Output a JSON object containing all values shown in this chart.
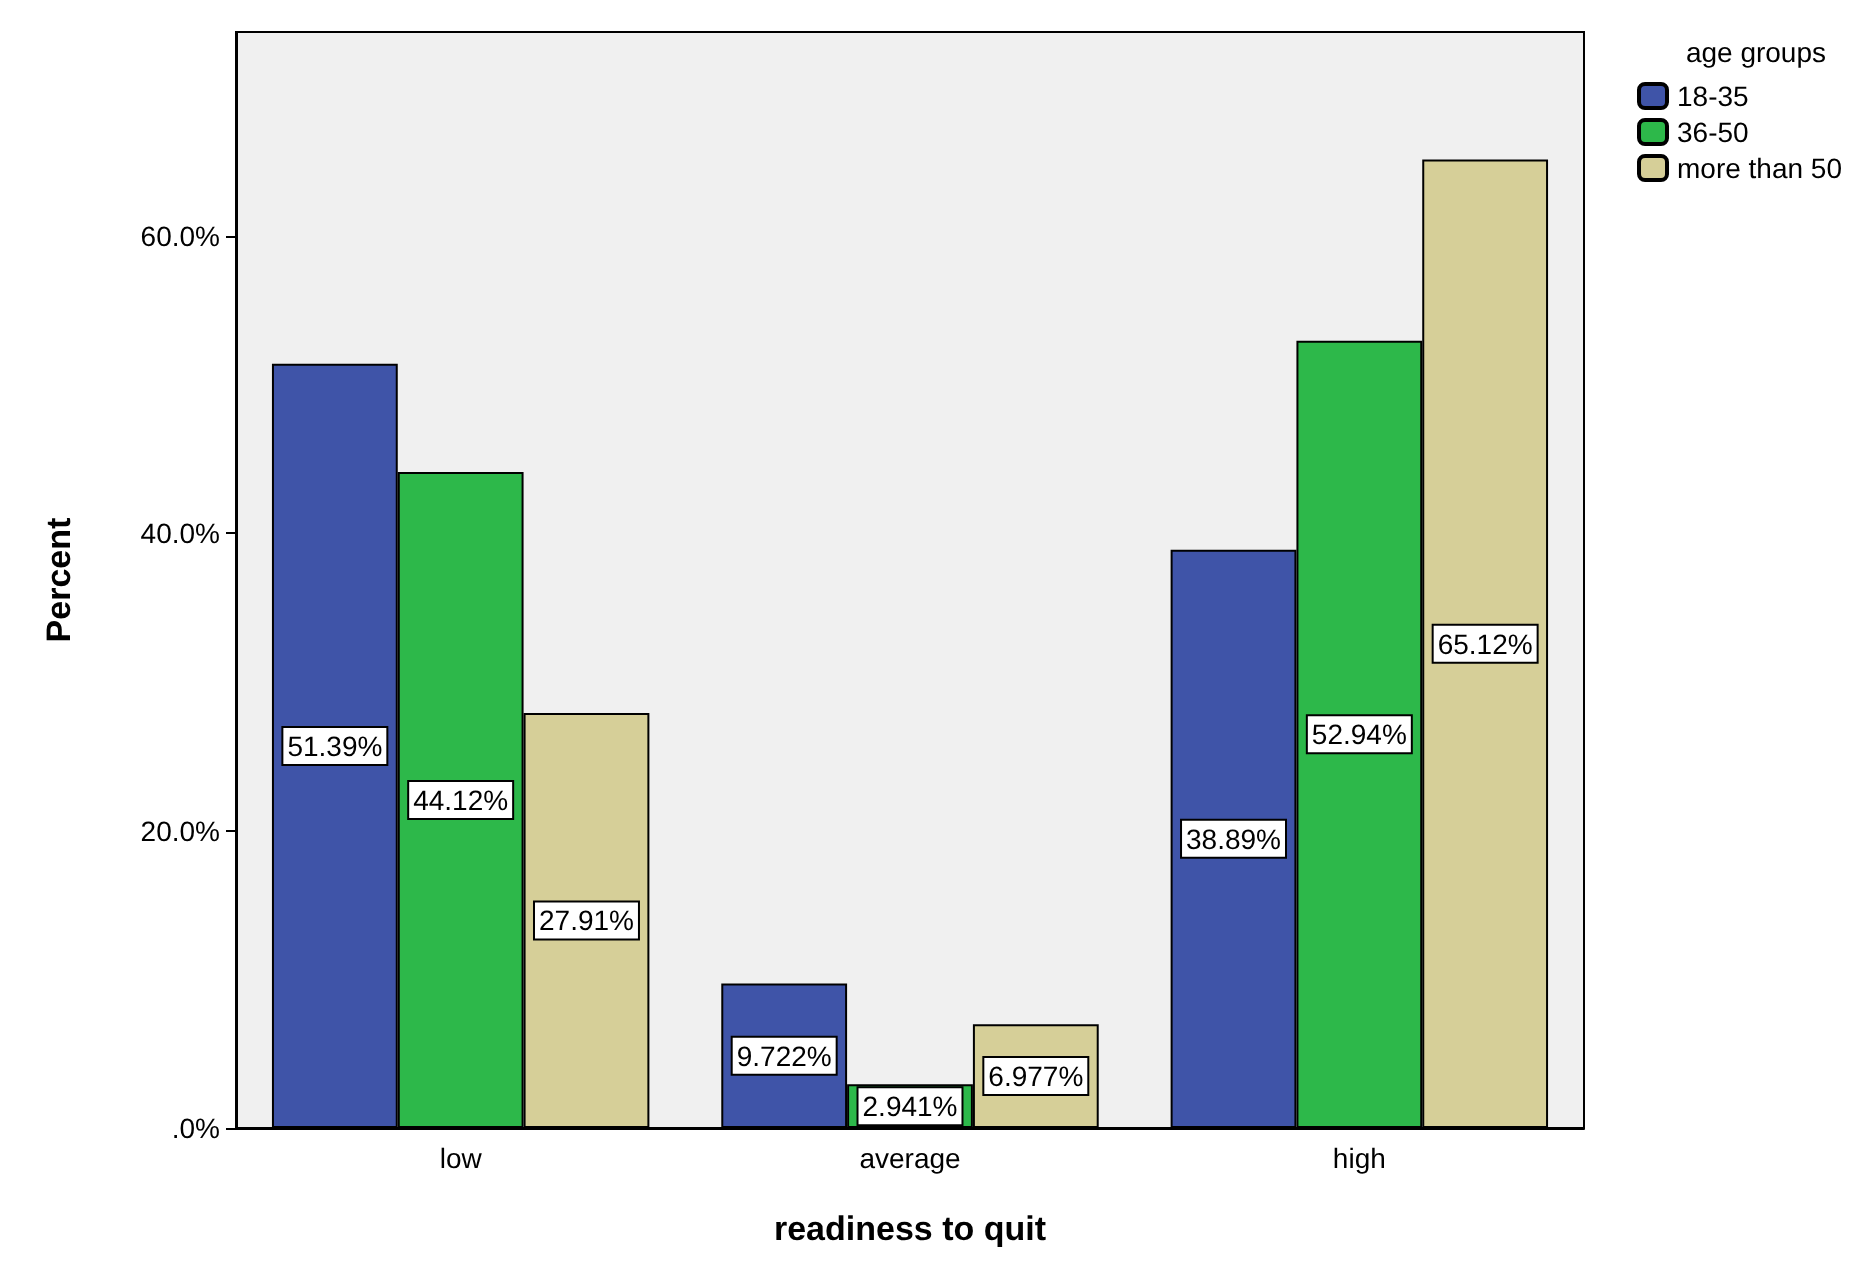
{
  "chart_data": {
    "type": "bar",
    "xlabel": "readiness to quit",
    "ylabel": "Percent",
    "legend_title": "age groups",
    "categories": [
      "low",
      "average",
      "high"
    ],
    "series": [
      {
        "name": "18-35",
        "color": "#3f54a8",
        "values": [
          51.39,
          9.722,
          38.89
        ],
        "value_labels": [
          "51.39%",
          "9.722%",
          "38.89%"
        ]
      },
      {
        "name": "36-50",
        "color": "#2db84a",
        "values": [
          44.12,
          2.941,
          52.94
        ],
        "value_labels": [
          "44.12%",
          "2.941%",
          "52.94%"
        ]
      },
      {
        "name": "more than 50",
        "color": "#d6cf98",
        "values": [
          27.91,
          6.977,
          65.12
        ],
        "value_labels": [
          "27.91%",
          "6.977%",
          "65.12%"
        ]
      }
    ],
    "ylim": [
      0,
      73.7
    ],
    "yticks": [
      {
        "value": 0,
        "label": ".0%"
      },
      {
        "value": 20,
        "label": "20.0%"
      },
      {
        "value": 40,
        "label": "40.0%"
      },
      {
        "value": 60,
        "label": "60.0%"
      }
    ],
    "grid": false,
    "legend": "top right"
  }
}
